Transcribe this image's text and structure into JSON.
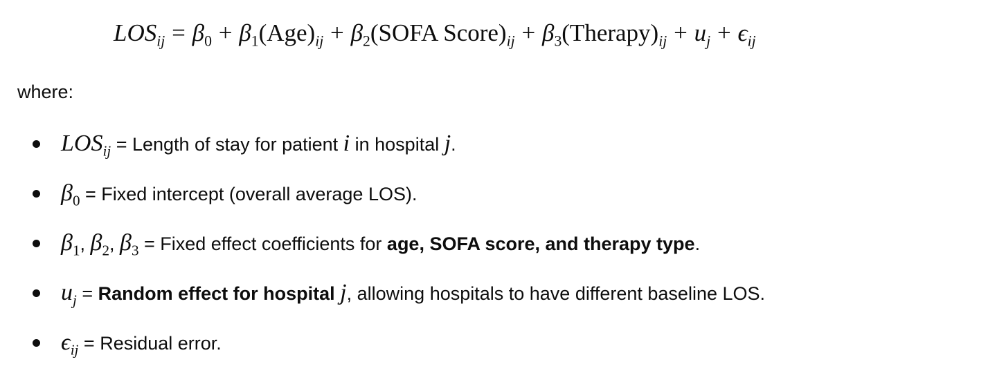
{
  "equation": {
    "lhs_base": "LOS",
    "lhs_sub": "ij",
    "equals": "=",
    "beta": "β",
    "b0_sub": "0",
    "b1_sub": "1",
    "b2_sub": "2",
    "b3_sub": "3",
    "plus": "+",
    "age_term": "(Age)",
    "sofa_term": "(SOFA Score)",
    "therapy_term": "(Therapy)",
    "term_sub": "ij",
    "u": "u",
    "u_sub": "j",
    "epsilon": "ϵ",
    "eps_sub": "ij"
  },
  "where_label": "where:",
  "definitions": [
    {
      "sym_base": "LOS",
      "sym_sub": "ij",
      "text1": " = Length of stay for patient ",
      "var_i": "i",
      "text2": " in hospital ",
      "var_j": "j",
      "text3": "."
    },
    {
      "sym_base": "β",
      "sym_sub": "0",
      "text1": " = Fixed intercept (overall average LOS)."
    },
    {
      "sym_base": "β",
      "sym1_sub": "1",
      "comma": ", ",
      "sym2_sub": "2",
      "sym3_sub": "3",
      "text1": " = Fixed effect coefficients for ",
      "bold": "age, SOFA score, and therapy type",
      "text2": "."
    },
    {
      "sym_base": "u",
      "sym_sub": "j",
      "text1": " = ",
      "bold": "Random effect for hospital ",
      "var_j": "j",
      "text2": ", allowing hospitals to have different baseline LOS."
    },
    {
      "sym_base": "ϵ",
      "sym_sub": "ij",
      "text1": " = Residual error."
    }
  ]
}
